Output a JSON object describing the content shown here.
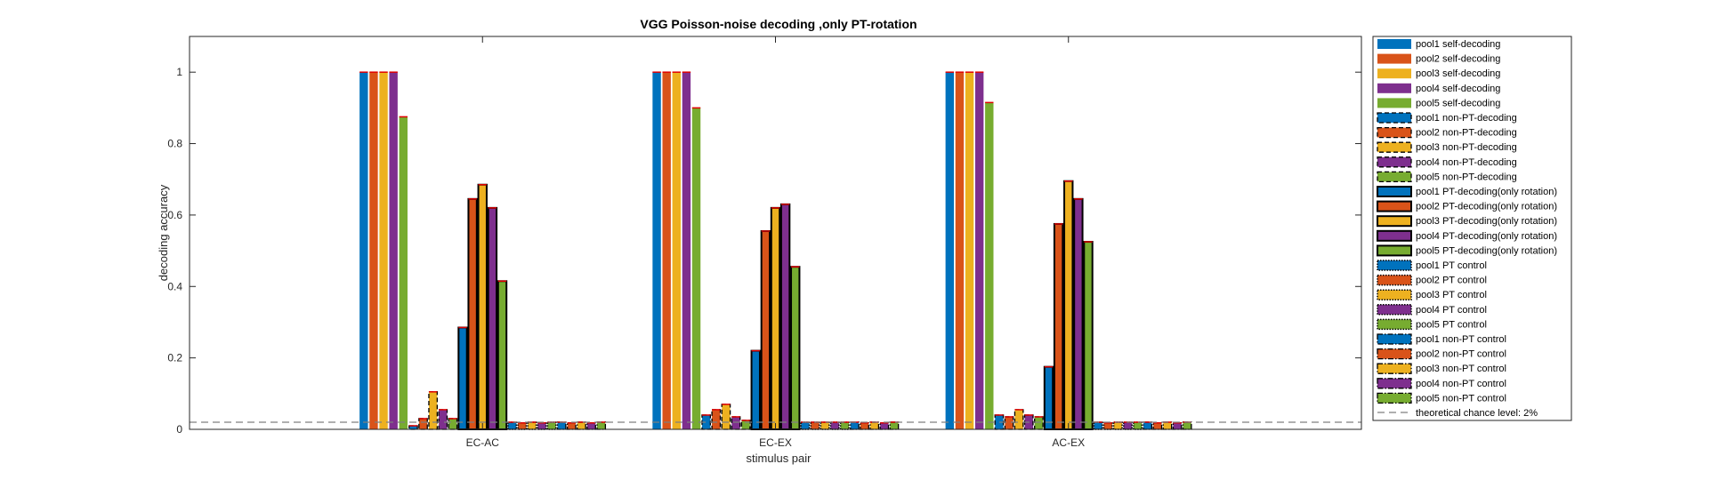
{
  "chart_data": {
    "type": "bar",
    "title": "VGG Poisson-noise decoding  ,only PT-rotation",
    "xlabel": "stimulus pair",
    "ylabel": "decoding accuracy",
    "ylim": [
      0,
      1.1
    ],
    "yticks": [
      "0",
      "0.2",
      "0.4",
      "0.6",
      "0.8",
      "1"
    ],
    "grid": false,
    "legend_position": "outside-right",
    "categories": [
      "EC-AC",
      "EC-EX",
      "AC-EX"
    ],
    "series": [
      {
        "name": "pool1 self-decoding",
        "values": [
          1.0,
          1.0,
          1.0
        ]
      },
      {
        "name": "pool2 self-decoding",
        "values": [
          1.0,
          1.0,
          1.0
        ]
      },
      {
        "name": "pool3 self-decoding",
        "values": [
          1.0,
          1.0,
          1.0
        ]
      },
      {
        "name": "pool4 self-decoding",
        "values": [
          1.0,
          1.0,
          1.0
        ]
      },
      {
        "name": "pool5 self-decoding",
        "values": [
          0.875,
          0.9,
          0.915
        ]
      },
      {
        "name": "pool1 non-PT-decoding",
        "values": [
          0.01,
          0.04,
          0.04
        ]
      },
      {
        "name": "pool2 non-PT-decoding",
        "values": [
          0.03,
          0.055,
          0.035
        ]
      },
      {
        "name": "pool3 non-PT-decoding",
        "values": [
          0.105,
          0.07,
          0.055
        ]
      },
      {
        "name": "pool4 non-PT-decoding",
        "values": [
          0.055,
          0.035,
          0.04
        ]
      },
      {
        "name": "pool5 non-PT-decoding",
        "values": [
          0.03,
          0.025,
          0.035
        ]
      },
      {
        "name": "pool1 PT-decoding(only rotation)",
        "values": [
          0.285,
          0.22,
          0.175
        ]
      },
      {
        "name": "pool2 PT-decoding(only rotation)",
        "values": [
          0.645,
          0.555,
          0.575
        ]
      },
      {
        "name": "pool3 PT-decoding(only rotation)",
        "values": [
          0.685,
          0.62,
          0.695
        ]
      },
      {
        "name": "pool4 PT-decoding(only rotation)",
        "values": [
          0.62,
          0.63,
          0.645
        ]
      },
      {
        "name": "pool5 PT-decoding(only rotation)",
        "values": [
          0.415,
          0.455,
          0.525
        ]
      },
      {
        "name": "pool1 PT control",
        "values": [
          0.02,
          0.02,
          0.02
        ]
      },
      {
        "name": "pool2 PT control",
        "values": [
          0.018,
          0.02,
          0.018
        ]
      },
      {
        "name": "pool3 PT control",
        "values": [
          0.02,
          0.02,
          0.02
        ]
      },
      {
        "name": "pool4 PT control",
        "values": [
          0.018,
          0.02,
          0.02
        ]
      },
      {
        "name": "pool5 PT control",
        "values": [
          0.02,
          0.02,
          0.02
        ]
      },
      {
        "name": "pool1 non-PT control",
        "values": [
          0.02,
          0.02,
          0.02
        ]
      },
      {
        "name": "pool2 non-PT control",
        "values": [
          0.018,
          0.018,
          0.018
        ]
      },
      {
        "name": "pool3 non-PT control",
        "values": [
          0.02,
          0.02,
          0.02
        ]
      },
      {
        "name": "pool4 non-PT control",
        "values": [
          0.018,
          0.018,
          0.018
        ]
      },
      {
        "name": "pool5 non-PT control",
        "values": [
          0.02,
          0.02,
          0.02
        ]
      }
    ],
    "pool_colors": [
      "#0072BD",
      "#D95319",
      "#EDB120",
      "#7E2F8E",
      "#77AC30"
    ],
    "series_styles": [
      "self",
      "self",
      "self",
      "self",
      "self",
      "nonpt",
      "nonpt",
      "nonpt",
      "nonpt",
      "nonpt",
      "pt",
      "pt",
      "pt",
      "pt",
      "pt",
      "ptctrl",
      "ptctrl",
      "ptctrl",
      "ptctrl",
      "ptctrl",
      "nonptctrl",
      "nonptctrl",
      "nonptctrl",
      "nonptctrl",
      "nonptctrl"
    ],
    "chance_level": {
      "value": 0.02,
      "label": "theoretical chance level: 2%"
    }
  }
}
